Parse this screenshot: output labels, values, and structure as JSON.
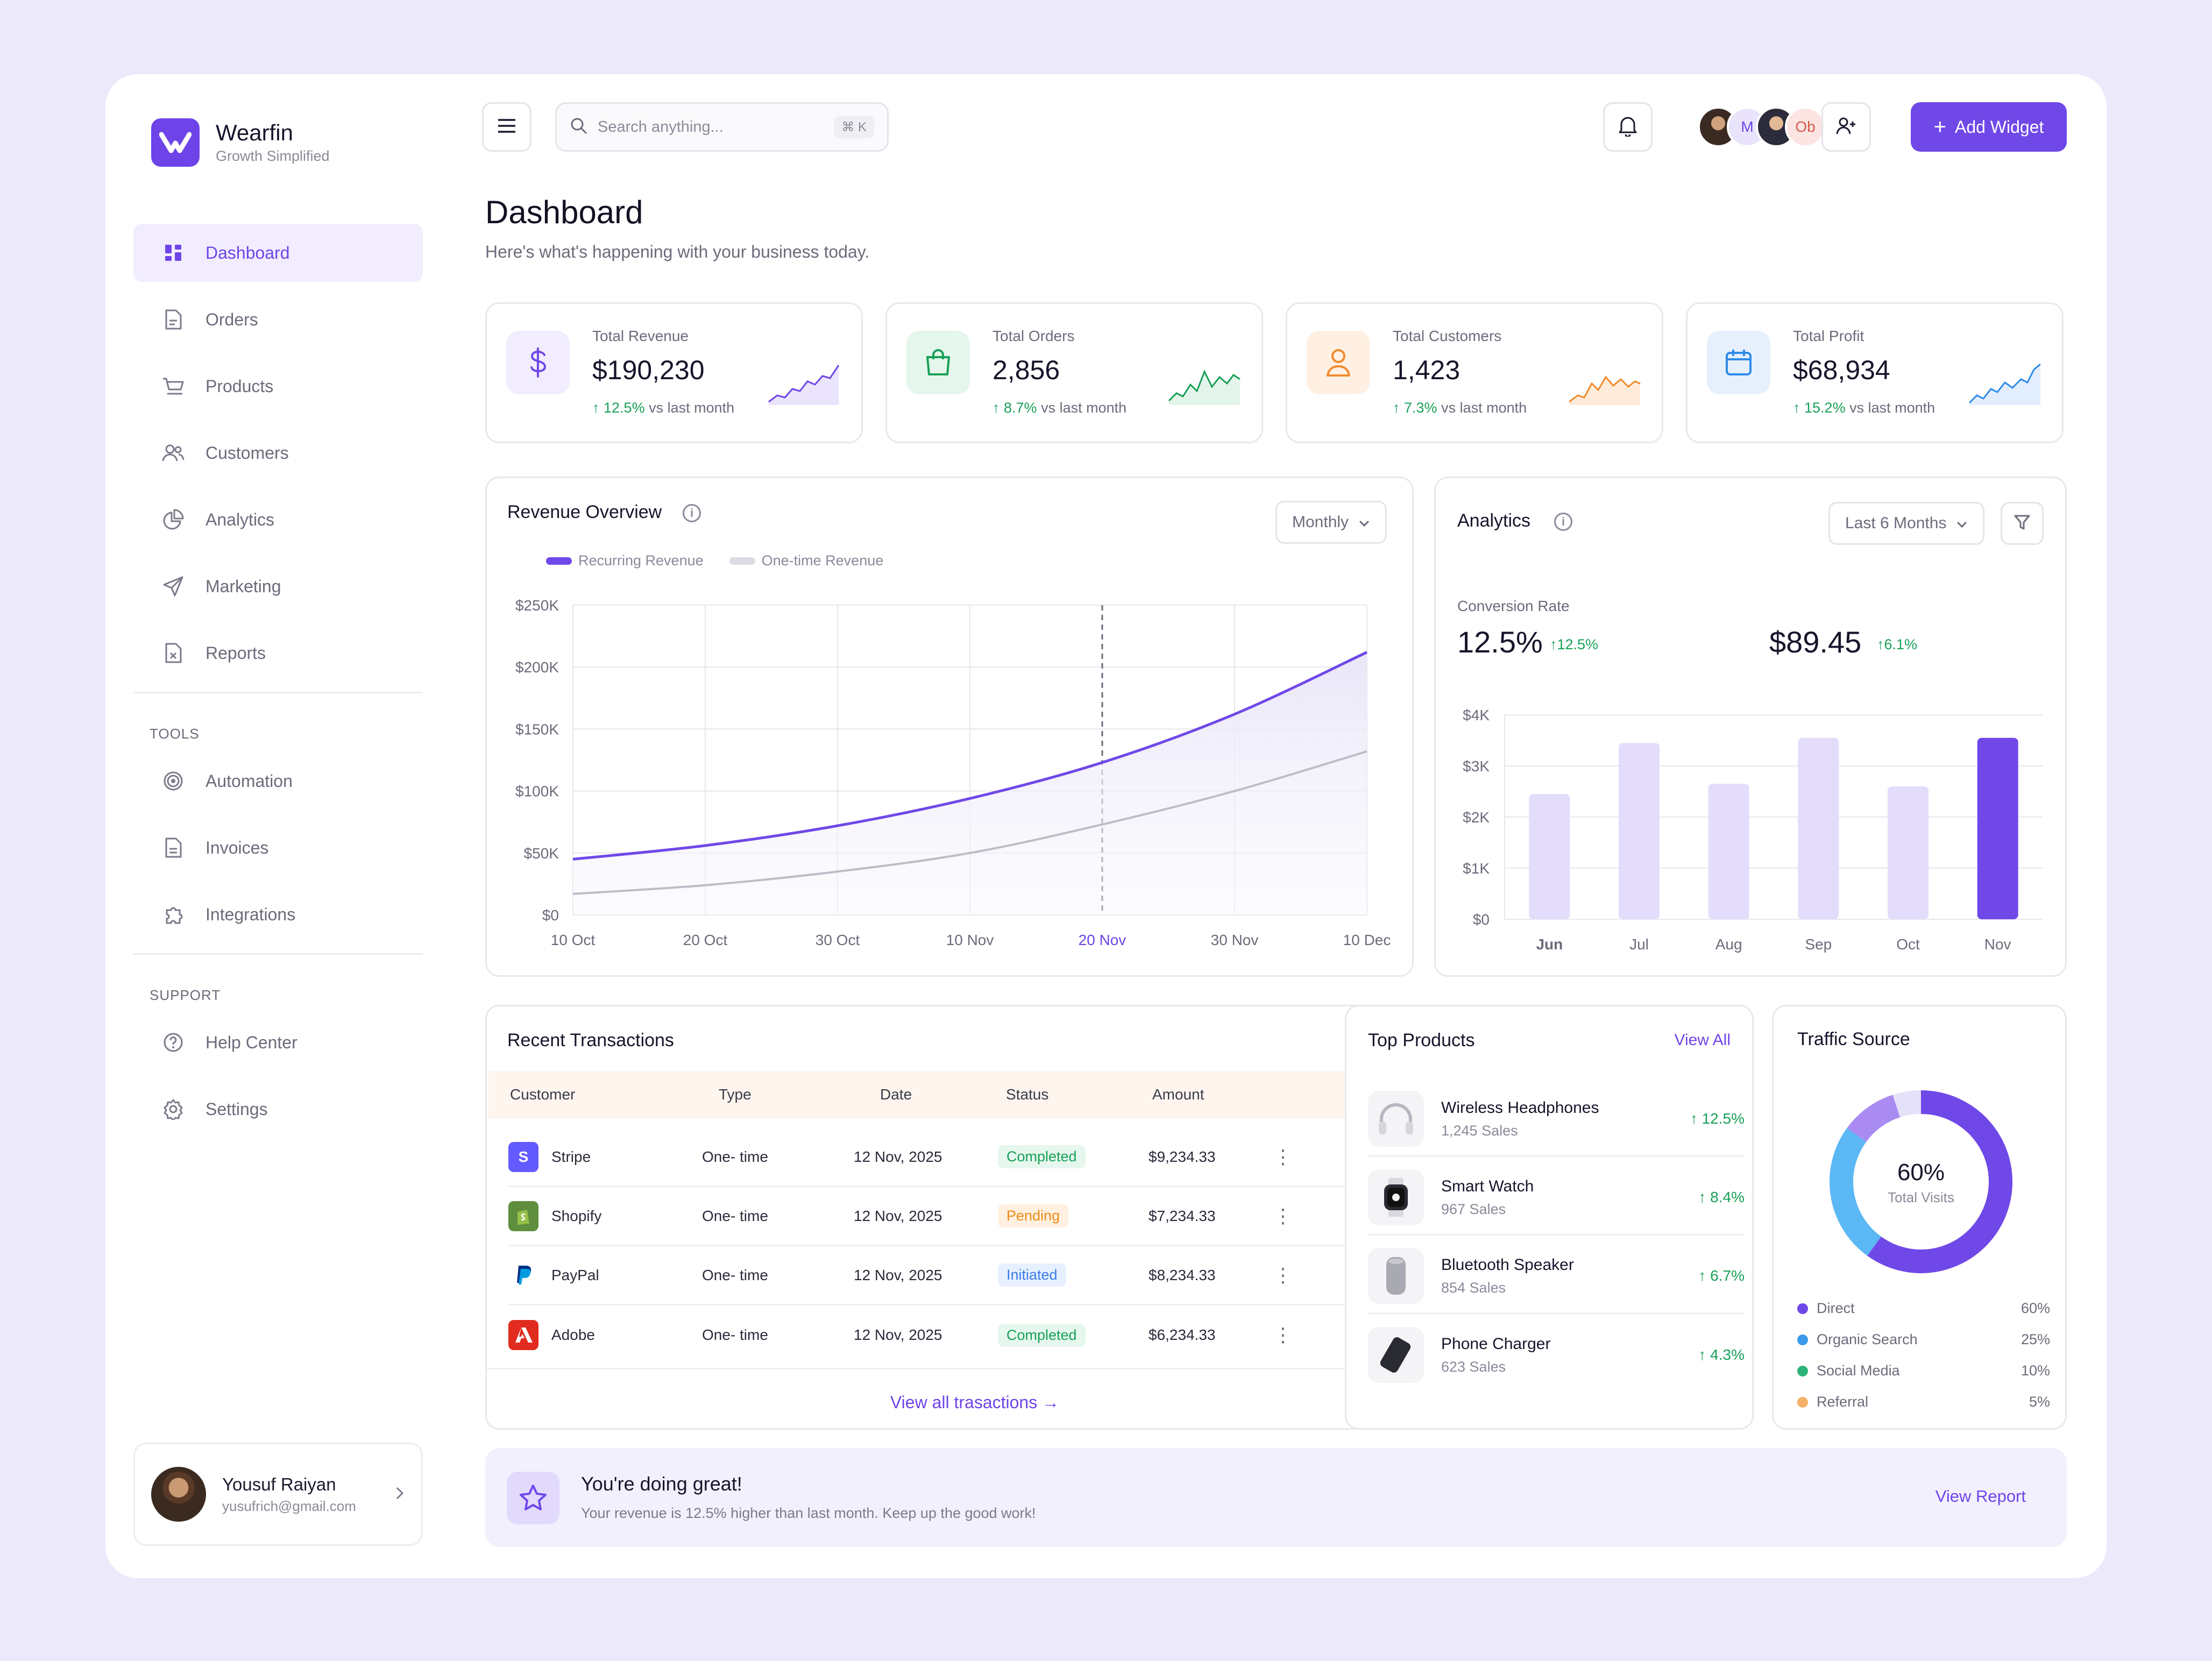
{
  "brand": {
    "name": "Wearfin",
    "tagline": "Growth Simplified"
  },
  "sidebar": {
    "main": [
      {
        "label": "Dashboard",
        "icon": "grid-icon",
        "active": true
      },
      {
        "label": "Orders",
        "icon": "document-icon"
      },
      {
        "label": "Products",
        "icon": "cart-icon"
      },
      {
        "label": "Customers",
        "icon": "users-icon"
      },
      {
        "label": "Analytics",
        "icon": "pie-chart-icon"
      },
      {
        "label": "Marketing",
        "icon": "send-icon"
      },
      {
        "label": "Reports",
        "icon": "report-icon"
      }
    ],
    "tools_title": "TOOLS",
    "tools": [
      {
        "label": "Automation",
        "icon": "automation-icon"
      },
      {
        "label": "Invoices",
        "icon": "invoice-icon"
      },
      {
        "label": "Integrations",
        "icon": "puzzle-icon"
      }
    ],
    "support_title": "SUPPORT",
    "support": [
      {
        "label": "Help Center",
        "icon": "help-icon"
      },
      {
        "label": "Settings",
        "icon": "gear-icon"
      }
    ],
    "user": {
      "name": "Yousuf Raiyan",
      "email": "yusufrich@gmail.com"
    }
  },
  "header": {
    "search_placeholder": "Search anything...",
    "search_shortcut": "⌘ K",
    "avatars": [
      "",
      "M",
      "",
      "Ob"
    ],
    "add_widget_label": "Add Widget",
    "add_widget_plus": "+"
  },
  "page": {
    "title": "Dashboard",
    "subtitle": "Here's what's happening with your business today."
  },
  "stats": [
    {
      "label": "Total Revenue",
      "value": "$190,230",
      "change": "12.5%",
      "suffix": "vs last month",
      "color": "#7048E8",
      "bg": "#F1EDFE",
      "icon": "dollar-icon"
    },
    {
      "label": "Total Orders",
      "value": "2,856",
      "change": "8.7%",
      "suffix": "vs last month",
      "color": "#18A058",
      "bg": "#E5F6EC",
      "icon": "bag-icon"
    },
    {
      "label": "Total Customers",
      "value": "1,423",
      "change": "7.3%",
      "suffix": "vs last month",
      "color": "#F08A2E",
      "bg": "#FFF0E3",
      "icon": "user-icon"
    },
    {
      "label": "Total Profit",
      "value": "$68,934",
      "change": "15.2%",
      "suffix": "vs last month",
      "color": "#2F8BE8",
      "bg": "#E6F0FD",
      "icon": "calendar-icon"
    }
  ],
  "revenue": {
    "title": "Revenue Overview",
    "period": "Monthly",
    "legend": [
      "Recurring Revenue",
      "One-time Revenue"
    ],
    "series_colors": [
      "#7048E8",
      "#BDBDC7"
    ]
  },
  "analytics": {
    "title": "Analytics",
    "period": "Last 6 Months",
    "metric_label": "Conversion Rate",
    "metric_value": "12.5%",
    "metric_change": "12.5%",
    "metric2_value": "$89.45",
    "metric2_change": "6.1%"
  },
  "chart_data": [
    {
      "type": "area",
      "x": [
        "10 Oct",
        "20 Oct",
        "30 Oct",
        "10 Nov",
        "20 Nov",
        "30 Nov",
        "10 Dec"
      ],
      "highlight_x": "20 Nov",
      "ylim": [
        0,
        250000
      ],
      "yticks": [
        "$0",
        "$50K",
        "$100K",
        "$150K",
        "$200K",
        "$250K"
      ],
      "series": [
        {
          "name": "Recurring Revenue",
          "values": [
            45000,
            56000,
            72000,
            94000,
            123000,
            162000,
            212000
          ]
        },
        {
          "name": "One-time Revenue",
          "values": [
            17000,
            24000,
            35000,
            50000,
            73000,
            100000,
            132000
          ]
        }
      ]
    },
    {
      "type": "bar",
      "categories": [
        "Jun",
        "Jul",
        "Aug",
        "Sep",
        "Oct",
        "Nov"
      ],
      "values": [
        2450,
        3450,
        2650,
        3550,
        2600,
        3550
      ],
      "highlight": "Nov",
      "ylim": [
        0,
        4000
      ],
      "yticks": [
        "$0",
        "$1K",
        "$2K",
        "$3K",
        "$4K"
      ]
    },
    {
      "type": "pie",
      "center_value": "60%",
      "center_label": "Total Visits",
      "slices": [
        {
          "name": "Direct",
          "value": 60,
          "label": "60%",
          "color": "#7048E8"
        },
        {
          "name": "Organic Search",
          "value": 25,
          "label": "25%",
          "color": "#5BB8F5"
        },
        {
          "name": "Social Media",
          "value": 10,
          "label": "10%",
          "color": "#A98BF2"
        },
        {
          "name": "Referral",
          "value": 5,
          "label": "5%",
          "color": "#E6E1FB"
        }
      ],
      "legend_dot_colors": [
        "#7048E8",
        "#3B9BEA",
        "#2DB37A",
        "#F4B26B"
      ]
    }
  ],
  "transactions": {
    "title": "Recent Transactions",
    "columns": [
      "Customer",
      "Type",
      "Date",
      "Status",
      "Amount"
    ],
    "rows": [
      {
        "customer": "Stripe",
        "type": "One- time",
        "date": "12 Nov, 2025",
        "status": "Completed",
        "status_kind": "completed",
        "amount": "$9,234.33",
        "logo_color": "#635BFF",
        "logo": "S"
      },
      {
        "customer": "Shopify",
        "type": "One- time",
        "date": "12 Nov, 2025",
        "status": "Pending",
        "status_kind": "pending",
        "amount": "$7,234.33",
        "logo_color": "#5E8E3E",
        "logo": ""
      },
      {
        "customer": "PayPal",
        "type": "One- time",
        "date": "12 Nov, 2025",
        "status": "Initiated",
        "status_kind": "initiated",
        "amount": "$8,234.33",
        "logo_color": "#FFFFFF",
        "logo": ""
      },
      {
        "customer": "Adobe",
        "type": "One- time",
        "date": "12 Nov, 2025",
        "status": "Completed",
        "status_kind": "completed",
        "amount": "$6,234.33",
        "logo_color": "#E12B1E",
        "logo": ""
      }
    ],
    "view_all": "View all trasactions"
  },
  "top_products": {
    "title": "Top Products",
    "view_all": "View All",
    "items": [
      {
        "name": "Wireless Headphones",
        "sales": "1,245 Sales",
        "change": "12.5%",
        "icon": "headphones-icon"
      },
      {
        "name": "Smart Watch",
        "sales": "967 Sales",
        "change": "8.4%",
        "icon": "watch-icon"
      },
      {
        "name": "Bluetooth Speaker",
        "sales": "854 Sales",
        "change": "6.7%",
        "icon": "speaker-icon"
      },
      {
        "name": "Phone Charger",
        "sales": "623 Sales",
        "change": "4.3%",
        "icon": "charger-icon"
      }
    ]
  },
  "traffic": {
    "title": "Traffic Source"
  },
  "banner": {
    "title": "You're doing great!",
    "subtitle": "Your revenue is 12.5% higher than last month. Keep up the good work!",
    "link": "View Report"
  }
}
